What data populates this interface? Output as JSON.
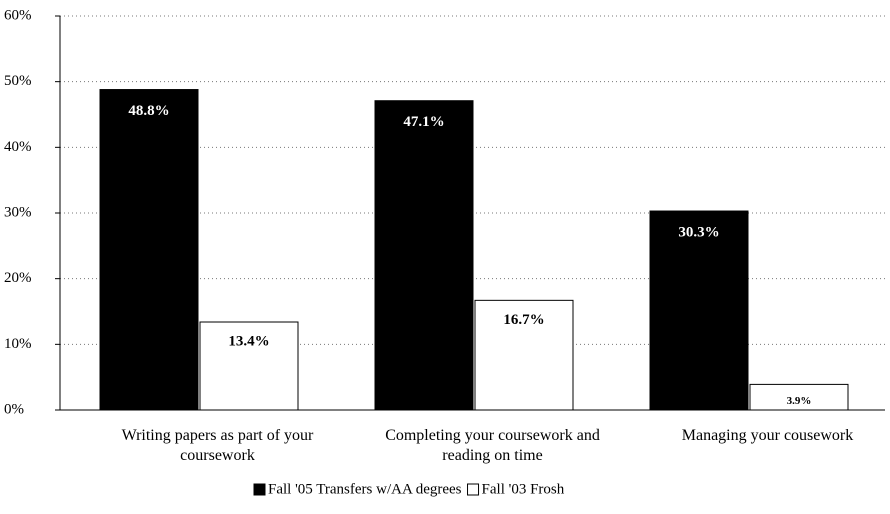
{
  "chart_data": {
    "type": "bar",
    "categories": [
      "Writing papers as part  of your coursework",
      "Completing your coursework and reading on time",
      "Managing your cousework"
    ],
    "series": [
      {
        "name": "Fall '05 Transfers w/AA degrees",
        "color": "#000000",
        "values": [
          48.8,
          47.1,
          30.3
        ],
        "value_labels": [
          "48.8%",
          "47.1%",
          "30.3%"
        ]
      },
      {
        "name": "Fall '03 Frosh",
        "color": "#ffffff",
        "values": [
          13.4,
          16.7,
          3.9
        ],
        "value_labels": [
          "13.4%",
          "16.7%",
          "3.9%"
        ]
      }
    ],
    "ylim": [
      0,
      60
    ],
    "yticks": [
      {
        "value": 0,
        "label": "0%"
      },
      {
        "value": 10,
        "label": "10%"
      },
      {
        "value": 20,
        "label": "20%"
      },
      {
        "value": 30,
        "label": "30%"
      },
      {
        "value": 40,
        "label": "40%"
      },
      {
        "value": 50,
        "label": "50%"
      },
      {
        "value": 60,
        "label": "60%"
      }
    ],
    "grid": true
  }
}
